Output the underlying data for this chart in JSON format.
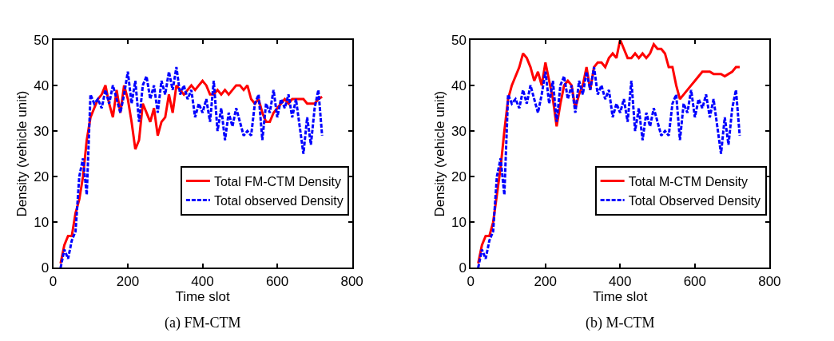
{
  "chart_data": [
    {
      "type": "line",
      "xlabel": "Time slot",
      "ylabel": "Density (vehicle unit)",
      "xlim": [
        0,
        800
      ],
      "ylim": [
        0,
        50
      ],
      "xticks": [
        0,
        200,
        400,
        600,
        800
      ],
      "yticks": [
        0,
        10,
        20,
        30,
        40,
        50
      ],
      "legend": "right",
      "annotations": [
        "(a) FM-CTM"
      ],
      "x": [
        20,
        30,
        40,
        50,
        60,
        70,
        80,
        90,
        100,
        110,
        120,
        130,
        140,
        150,
        160,
        170,
        180,
        190,
        200,
        210,
        220,
        230,
        240,
        250,
        260,
        270,
        280,
        290,
        300,
        310,
        320,
        330,
        340,
        350,
        360,
        370,
        380,
        390,
        400,
        410,
        420,
        430,
        440,
        450,
        460,
        470,
        480,
        490,
        500,
        510,
        520,
        530,
        540,
        550,
        560,
        570,
        580,
        590,
        600,
        610,
        620,
        630,
        640,
        650,
        660,
        670,
        680,
        690,
        700,
        710,
        720
      ],
      "series": [
        {
          "name": "Total FM-CTM Density",
          "color": "#ff0000",
          "line_style": "solid",
          "values": [
            1,
            5,
            7,
            7,
            12,
            15,
            20,
            28,
            33,
            35,
            37,
            38,
            40,
            36,
            33,
            39,
            34,
            40,
            37,
            32,
            26,
            28,
            36,
            34,
            32,
            35,
            29,
            32,
            33,
            38,
            34,
            40,
            39,
            38,
            39,
            40,
            39,
            40,
            41,
            40,
            38,
            38,
            39,
            38,
            39,
            38,
            39,
            40,
            40,
            39,
            40,
            37,
            36,
            37,
            34,
            32,
            32,
            34,
            35,
            36,
            37,
            36,
            37,
            37,
            37,
            37,
            36,
            36,
            36,
            37,
            37.5
          ]
        },
        {
          "name": "Total observed Density",
          "color": "#0000ff",
          "line_style": "dashed",
          "values": [
            0,
            4,
            2,
            6,
            8,
            20,
            24,
            16,
            38,
            36,
            37,
            35,
            39,
            36,
            40,
            37,
            34,
            38,
            43,
            36,
            41,
            32,
            40,
            42,
            37,
            40,
            34,
            41,
            38,
            43,
            39,
            44,
            38,
            40,
            37,
            39,
            33,
            36,
            34,
            37,
            32,
            41,
            30,
            35,
            28,
            34,
            31,
            35,
            32,
            29,
            30,
            29,
            36,
            38,
            28,
            36,
            34,
            39,
            33,
            37,
            35,
            38,
            33,
            37,
            31,
            25,
            33,
            27,
            35,
            39,
            29
          ]
        }
      ]
    },
    {
      "type": "line",
      "xlabel": "Time slot",
      "ylabel": "Density (vehicle unit)",
      "xlim": [
        0,
        800
      ],
      "ylim": [
        0,
        50
      ],
      "xticks": [
        0,
        200,
        400,
        600,
        800
      ],
      "yticks": [
        0,
        10,
        20,
        30,
        40,
        50
      ],
      "legend": "right",
      "annotations": [
        "(b) M-CTM"
      ],
      "x": [
        20,
        30,
        40,
        50,
        60,
        70,
        80,
        90,
        100,
        110,
        120,
        130,
        140,
        150,
        160,
        170,
        180,
        190,
        200,
        210,
        220,
        230,
        240,
        250,
        260,
        270,
        280,
        290,
        300,
        310,
        320,
        330,
        340,
        350,
        360,
        370,
        380,
        390,
        400,
        410,
        420,
        430,
        440,
        450,
        460,
        470,
        480,
        490,
        500,
        510,
        520,
        530,
        540,
        550,
        560,
        570,
        580,
        590,
        600,
        610,
        620,
        630,
        640,
        650,
        660,
        670,
        680,
        690,
        700,
        710,
        720
      ],
      "series": [
        {
          "name": "Total M-CTM Density",
          "color": "#ff0000",
          "line_style": "solid",
          "values": [
            1,
            5,
            7,
            7,
            10,
            16,
            22,
            30,
            37,
            40,
            42,
            44,
            47,
            46,
            44,
            41,
            43,
            40,
            45,
            41,
            37,
            31,
            36,
            40,
            41,
            40,
            35,
            38,
            40,
            44,
            39,
            44,
            45,
            45,
            44,
            46,
            47,
            46,
            50,
            48,
            46,
            46,
            47,
            46,
            47,
            46,
            47,
            49,
            48,
            48,
            47,
            44,
            44,
            40,
            37,
            38,
            39,
            40,
            41,
            42,
            43,
            43,
            43,
            42.5,
            42.5,
            42.5,
            42,
            42.5,
            43,
            44,
            44
          ]
        },
        {
          "name": "Total Observed Density",
          "color": "#0000ff",
          "line_style": "dashed",
          "values": [
            0,
            4,
            2,
            6,
            8,
            20,
            24,
            16,
            38,
            36,
            37,
            35,
            39,
            36,
            40,
            37,
            34,
            38,
            43,
            36,
            41,
            32,
            40,
            42,
            37,
            40,
            34,
            41,
            38,
            43,
            39,
            44,
            38,
            40,
            37,
            39,
            33,
            36,
            34,
            37,
            32,
            41,
            30,
            35,
            28,
            34,
            31,
            35,
            32,
            29,
            30,
            29,
            36,
            38,
            28,
            36,
            34,
            39,
            33,
            37,
            35,
            38,
            33,
            37,
            31,
            25,
            33,
            27,
            35,
            39,
            29
          ]
        }
      ]
    }
  ]
}
